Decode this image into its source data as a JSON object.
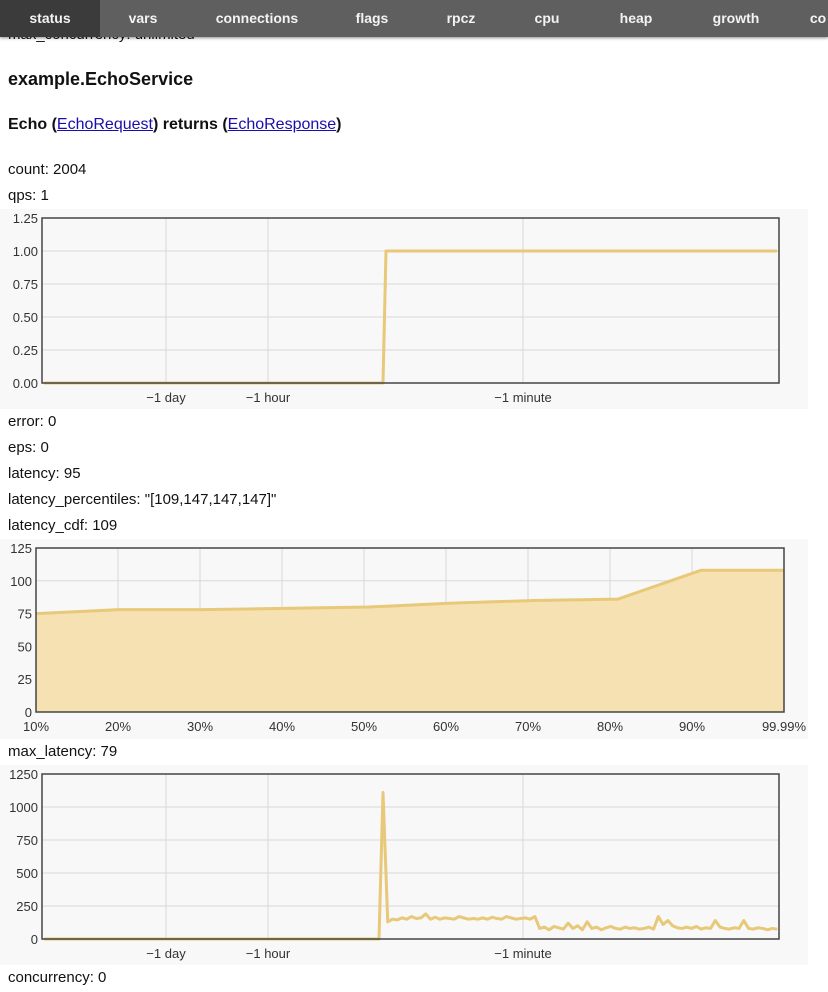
{
  "nav": {
    "tabs": [
      {
        "label": "status",
        "active": true
      },
      {
        "label": "vars"
      },
      {
        "label": "connections"
      },
      {
        "label": "flags"
      },
      {
        "label": "rpcz"
      },
      {
        "label": "cpu"
      },
      {
        "label": "heap"
      },
      {
        "label": "growth"
      },
      {
        "label": "co"
      }
    ]
  },
  "header_partial": "max_concurrency: unlimited",
  "service": {
    "name": "example.EchoService",
    "method": {
      "name": "Echo",
      "open_paren": " (",
      "request": "EchoRequest",
      "returns_text": ") returns (",
      "response": "EchoResponse",
      "close_paren": ")"
    }
  },
  "stats": {
    "count": "count: 2004",
    "qps": "qps: 1",
    "error": "error: 0",
    "eps": "eps: 0",
    "latency": "latency: 95",
    "latency_percentiles": "latency_percentiles: \"[109,147,147,147]\"",
    "latency_cdf": "latency_cdf: 109",
    "max_latency": "max_latency: 79",
    "concurrency": "concurrency: 0"
  },
  "colors": {
    "line": "#e8c879",
    "fill": "#f5e1b2",
    "grid": "#d8d8d8",
    "frame": "#444444",
    "plot_bg": "#f8f8f8",
    "nav_bg": "#5f5f5f",
    "nav_active": "#3b3b3b",
    "link": "#1a0dab"
  },
  "chart_data": [
    {
      "id": "qps",
      "type": "line",
      "ylim": [
        0,
        1.25
      ],
      "y_ticks": [
        "0.00",
        "0.25",
        "0.50",
        "0.75",
        "1.00",
        "1.25"
      ],
      "x_ticks": [
        "−1 day",
        "−1 hour",
        "−1 minute"
      ],
      "series": [
        {
          "values": [
            0,
            0,
            0,
            0,
            0,
            0,
            1,
            1,
            1,
            1,
            1,
            1,
            1,
            1,
            1,
            1
          ]
        }
      ]
    },
    {
      "id": "latency_cdf",
      "type": "area",
      "ylim": [
        0,
        125
      ],
      "y_ticks": [
        "0",
        "25",
        "50",
        "75",
        "100",
        "125"
      ],
      "categories": [
        "10%",
        "20%",
        "30%",
        "40%",
        "50%",
        "60%",
        "70%",
        "80%",
        "90%",
        "99.99%"
      ],
      "series": [
        {
          "values": [
            75,
            78,
            78,
            79,
            80,
            83,
            85,
            86,
            108,
            108
          ]
        }
      ]
    },
    {
      "id": "max_latency",
      "type": "line",
      "ylim": [
        0,
        1250
      ],
      "y_ticks": [
        "0",
        "250",
        "500",
        "750",
        "1000",
        "1250"
      ],
      "x_ticks": [
        "−1 day",
        "−1 hour",
        "−1 minute"
      ],
      "series": [
        {
          "values": [
            0,
            0,
            0,
            0,
            0,
            0,
            0,
            0,
            1110,
            130,
            150,
            145,
            160,
            150,
            170,
            155,
            160,
            190,
            150,
            165,
            150,
            160,
            155,
            150,
            170,
            160,
            150,
            155,
            150,
            160,
            150,
            165,
            155,
            150,
            170,
            160,
            150,
            155,
            160,
            150,
            170,
            80,
            90,
            70,
            95,
            85,
            75,
            120,
            80,
            100,
            70,
            130,
            80,
            90,
            70,
            85,
            95,
            80,
            75,
            90,
            80,
            85,
            75,
            80,
            90,
            75,
            170,
            110,
            140,
            100,
            85,
            80,
            90,
            80,
            95,
            75,
            85,
            80,
            140,
            90,
            80,
            75,
            85,
            80,
            140,
            80,
            75,
            85,
            80,
            70,
            80,
            75
          ]
        }
      ]
    }
  ]
}
